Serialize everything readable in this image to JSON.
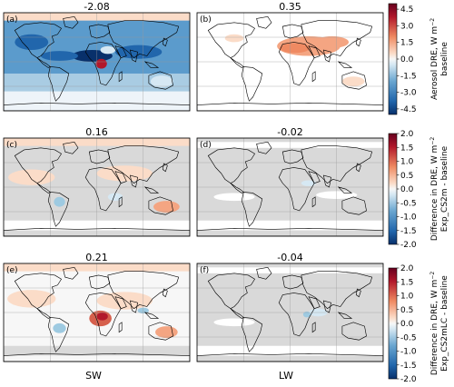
{
  "panels": [
    {
      "id": "a",
      "label": "(a)",
      "value": "-2.08",
      "kind": "sw_base"
    },
    {
      "id": "b",
      "label": "(b)",
      "value": "0.35",
      "kind": "lw_base"
    },
    {
      "id": "c",
      "label": "(c)",
      "value": "0.16",
      "kind": "sw_diff1"
    },
    {
      "id": "d",
      "label": "(d)",
      "value": "-0.02",
      "kind": "lw_diff1"
    },
    {
      "id": "e",
      "label": "(e)",
      "value": "0.21",
      "kind": "sw_diff2"
    },
    {
      "id": "f",
      "label": "(f)",
      "value": "-0.04",
      "kind": "lw_diff2"
    }
  ],
  "colorbars": [
    {
      "id": "cb1",
      "vmin": -5,
      "vmax": 5,
      "ticks": [
        "4.5",
        "3.0",
        "1.5",
        "0.0",
        "-1.5",
        "-3.0",
        "-4.5"
      ],
      "label_line1": "Aerosol DRE, W m",
      "label_sup": "−2",
      "label_line2": "baseline"
    },
    {
      "id": "cb2",
      "vmin": -2,
      "vmax": 2,
      "ticks": [
        "2.0",
        "1.5",
        "1.0",
        "0.5",
        "0.0",
        "-0.5",
        "-1.0",
        "-1.5",
        "-2.0"
      ],
      "label_line1": "Difference in DRE, W m",
      "label_sup": "−2",
      "label_line2": "Exp_CS2m - baseline"
    },
    {
      "id": "cb3",
      "vmin": -2,
      "vmax": 2,
      "ticks": [
        "2.0",
        "1.5",
        "1.0",
        "0.5",
        "0.0",
        "-0.5",
        "-1.0",
        "-1.5",
        "-2.0"
      ],
      "label_line1": "Difference in DRE, W m",
      "label_sup": "−2",
      "label_line2": "Exp_CS2mLC - baseline"
    }
  ],
  "columns": {
    "left": "SW",
    "right": "LW"
  },
  "colors": {
    "neg_dark": "#08306b",
    "neg": "#2166ac",
    "pos": "#b2182b",
    "pos_dark": "#67001f",
    "mid": "#f7f7f7",
    "missing": "#d9d9d9"
  }
}
